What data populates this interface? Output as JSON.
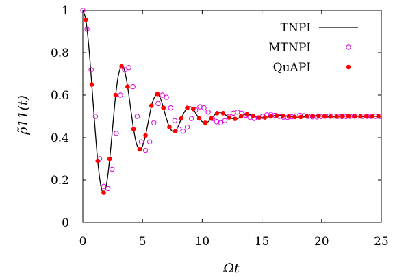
{
  "chart_data": {
    "type": "line",
    "title": "",
    "xlabel": "Ωt",
    "ylabel": "ρ̃11(t)",
    "xlim": [
      0,
      25
    ],
    "ylim": [
      0,
      1
    ],
    "xticks": [
      "0",
      "5",
      "10",
      "15",
      "20",
      "25"
    ],
    "yticks": [
      "0",
      "0.2",
      "0.4",
      "0.6",
      "0.8",
      "1"
    ],
    "grid": false,
    "legend_position": "top-right",
    "series": [
      {
        "name": "TNPI",
        "style": "line",
        "color": "#000000",
        "x": [
          0,
          0.25,
          0.5,
          0.75,
          1,
          1.25,
          1.5,
          1.75,
          2,
          2.25,
          2.5,
          2.75,
          3,
          3.25,
          3.5,
          3.75,
          4,
          4.25,
          4.5,
          4.75,
          5,
          5.25,
          5.5,
          5.75,
          6,
          6.25,
          6.5,
          6.75,
          7,
          7.25,
          7.5,
          7.75,
          8,
          8.25,
          8.5,
          8.75,
          9,
          9.25,
          9.5,
          9.75,
          10,
          10.25,
          10.5,
          10.75,
          11,
          11.25,
          11.5,
          11.75,
          12,
          12.25,
          12.5,
          12.75,
          13,
          13.25,
          13.5,
          13.75,
          14,
          14.25,
          14.5,
          14.75,
          15,
          15.5,
          16,
          16.5,
          17,
          17.5,
          18,
          18.5,
          19,
          19.5,
          20,
          20.5,
          21,
          21.5,
          22,
          22.5,
          23,
          23.5,
          24,
          24.5,
          25
        ],
        "y": [
          1.0,
          0.955,
          0.83,
          0.65,
          0.46,
          0.29,
          0.175,
          0.14,
          0.185,
          0.3,
          0.45,
          0.6,
          0.7,
          0.735,
          0.715,
          0.64,
          0.54,
          0.44,
          0.37,
          0.345,
          0.36,
          0.41,
          0.48,
          0.55,
          0.59,
          0.605,
          0.585,
          0.54,
          0.49,
          0.45,
          0.43,
          0.43,
          0.455,
          0.49,
          0.52,
          0.54,
          0.545,
          0.535,
          0.51,
          0.49,
          0.475,
          0.47,
          0.475,
          0.49,
          0.505,
          0.515,
          0.52,
          0.515,
          0.505,
          0.495,
          0.49,
          0.488,
          0.49,
          0.5,
          0.508,
          0.51,
          0.508,
          0.503,
          0.498,
          0.495,
          0.494,
          0.497,
          0.503,
          0.505,
          0.502,
          0.498,
          0.496,
          0.498,
          0.502,
          0.503,
          0.501,
          0.499,
          0.498,
          0.5,
          0.501,
          0.501,
          0.5,
          0.499,
          0.5,
          0.5,
          0.5
        ]
      },
      {
        "name": "MTNPI",
        "style": "open-circle",
        "color": "#e000e0",
        "x": [
          0,
          0.35,
          0.7,
          1.05,
          1.4,
          1.75,
          2.1,
          2.45,
          2.8,
          3.15,
          3.5,
          3.85,
          4.2,
          4.55,
          4.9,
          5.25,
          5.6,
          5.95,
          6.3,
          6.65,
          7.0,
          7.35,
          7.7,
          8.05,
          8.4,
          8.75,
          9.1,
          9.45,
          9.8,
          10.15,
          10.5,
          10.85,
          11.2,
          11.55,
          11.9,
          12.25,
          12.6,
          12.95,
          13.3,
          13.65,
          14.0,
          14.35,
          14.7,
          15.05,
          15.4,
          15.75,
          16.1,
          16.45,
          16.8,
          17.15,
          17.5,
          17.85,
          18.2,
          18.55,
          18.9,
          19.25,
          19.6,
          19.95,
          20.3,
          20.65,
          21.0,
          21.35,
          21.7,
          22.05,
          22.4,
          22.75,
          23.1,
          23.45,
          23.8,
          24.15,
          24.5,
          24.85
        ],
        "y": [
          1.0,
          0.91,
          0.72,
          0.5,
          0.3,
          0.17,
          0.16,
          0.25,
          0.42,
          0.6,
          0.72,
          0.73,
          0.64,
          0.5,
          0.38,
          0.34,
          0.38,
          0.47,
          0.56,
          0.6,
          0.59,
          0.54,
          0.48,
          0.44,
          0.43,
          0.45,
          0.49,
          0.53,
          0.545,
          0.54,
          0.52,
          0.49,
          0.475,
          0.47,
          0.48,
          0.5,
          0.515,
          0.52,
          0.515,
          0.505,
          0.495,
          0.49,
          0.492,
          0.5,
          0.507,
          0.509,
          0.505,
          0.5,
          0.496,
          0.495,
          0.498,
          0.502,
          0.504,
          0.503,
          0.5,
          0.498,
          0.497,
          0.499,
          0.501,
          0.502,
          0.501,
          0.5,
          0.499,
          0.499,
          0.5,
          0.501,
          0.501,
          0.5,
          0.5,
          0.5,
          0.5,
          0.5
        ]
      },
      {
        "name": "QuAPI",
        "style": "filled-circle",
        "color": "#ff0000",
        "x": [
          0.25,
          0.75,
          1.25,
          1.75,
          2.25,
          2.75,
          3.25,
          3.75,
          4.25,
          4.75,
          5.25,
          5.75,
          6.25,
          6.75,
          7.25,
          7.75,
          8.25,
          8.75,
          9.25,
          9.75,
          10.25,
          10.75,
          11.25,
          11.75,
          12.25,
          12.75,
          13.25,
          13.75,
          14.25,
          14.75,
          15.25,
          15.75,
          16.25,
          16.75,
          17.25,
          17.75,
          18.25,
          18.75,
          19.25,
          19.75,
          20.25,
          20.75,
          21.25,
          21.75,
          22.25,
          22.75,
          23.25,
          23.75,
          24.25,
          24.75
        ],
        "y": [
          0.955,
          0.65,
          0.29,
          0.14,
          0.3,
          0.6,
          0.735,
          0.64,
          0.44,
          0.345,
          0.41,
          0.55,
          0.605,
          0.54,
          0.45,
          0.43,
          0.49,
          0.54,
          0.535,
          0.49,
          0.47,
          0.49,
          0.515,
          0.515,
          0.495,
          0.488,
          0.5,
          0.51,
          0.503,
          0.495,
          0.495,
          0.5,
          0.504,
          0.503,
          0.5,
          0.497,
          0.497,
          0.5,
          0.502,
          0.502,
          0.5,
          0.499,
          0.499,
          0.5,
          0.501,
          0.5,
          0.5,
          0.5,
          0.5,
          0.5
        ]
      }
    ]
  }
}
